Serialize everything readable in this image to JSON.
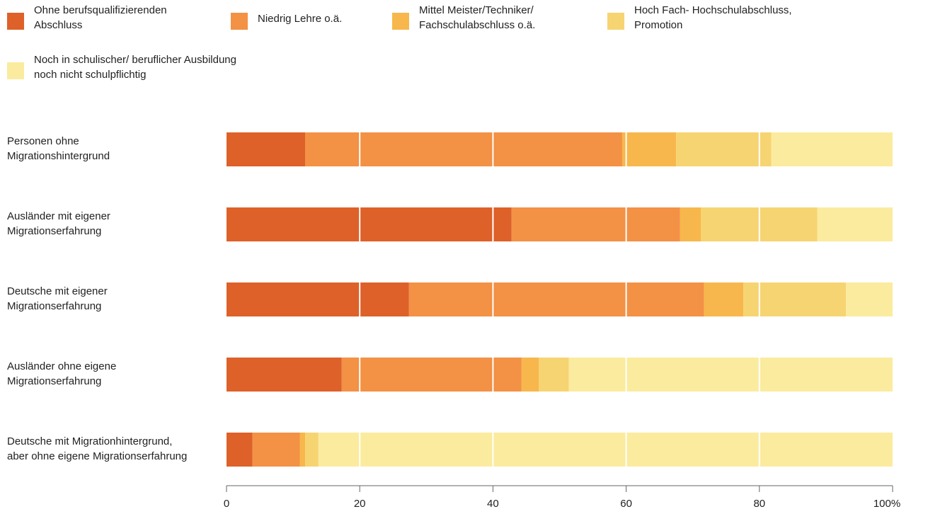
{
  "chart_data": {
    "type": "bar",
    "orientation": "horizontal",
    "stacked": true,
    "categories": [
      "Personen ohne\nMigrationshintergrund",
      "Ausländer mit eigener\nMigrationserfahrung",
      "Deutsche mit eigener\nMigrationserfahrung",
      "Ausländer ohne eigene\nMigrationserfahrung",
      "Deutsche mit Migrationhintergrund,\naber ohne eigene Migrationserfahrung"
    ],
    "series": [
      {
        "name": "Ohne berufsqualifizierenden\nAbschluss",
        "color": "#de6129",
        "values": [
          11.8,
          42.8,
          27.4,
          17.3,
          3.9
        ]
      },
      {
        "name": "Niedrig Lehre o.ä.",
        "color": "#f39145",
        "values": [
          47.6,
          25.3,
          44.3,
          27.0,
          7.1
        ]
      },
      {
        "name": "Mittel Meister/Techniker/\nFachschulabschluss o.ä.",
        "color": "#f7b74c",
        "values": [
          8.1,
          3.1,
          5.9,
          2.6,
          0.8
        ]
      },
      {
        "name": "Hoch Fach- Hochschulabschluss,\nPromotion",
        "color": "#f7d472",
        "values": [
          14.3,
          17.5,
          15.4,
          4.5,
          2.0
        ]
      },
      {
        "name": "Noch in schulischer/ beruflicher Ausbildung\nnoch nicht schulpflichtig",
        "color": "#fbeb9e",
        "values": [
          18.2,
          11.3,
          7.0,
          48.6,
          86.2
        ]
      }
    ],
    "xlim": [
      0,
      100
    ],
    "xticks": [
      "0",
      "20",
      "40",
      "60",
      "80",
      "100%"
    ],
    "grid": "vertical white lines at 20, 40, 60, 80",
    "legend_position": "top"
  }
}
